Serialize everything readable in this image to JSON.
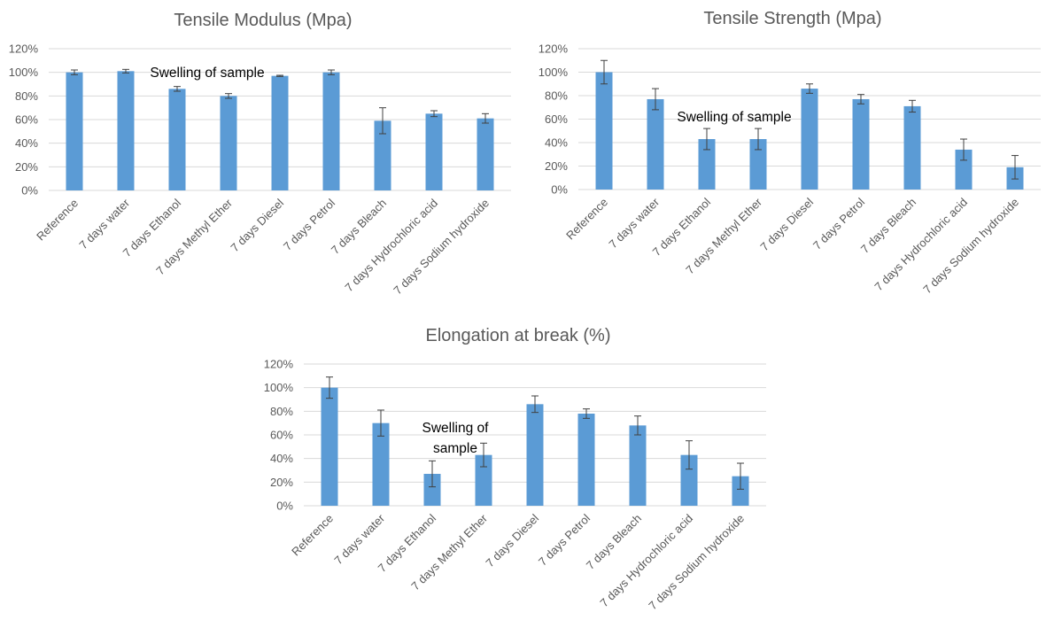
{
  "chart_data": [
    {
      "type": "bar",
      "title": "Tensile Modulus (Mpa)",
      "categories": [
        "Reference",
        "7 days water",
        "7 days Ethanol",
        "7 days Methyl Ether",
        "7 days Diesel",
        "7 days Petrol",
        "7 days Bleach",
        "7 days Hydrochloric acid",
        "7 days Sodium hydroxide"
      ],
      "values": [
        100,
        101,
        86,
        80,
        97,
        100,
        59,
        65,
        61
      ],
      "errors": [
        2,
        1.5,
        2,
        2,
        0.5,
        2,
        11,
        2.5,
        4
      ],
      "ylim": [
        0,
        120
      ],
      "yticks": [
        "0%",
        "20%",
        "40%",
        "60%",
        "80%",
        "100%",
        "120%"
      ],
      "xlabel": "",
      "ylabel": "",
      "annotations": [
        {
          "lines": [
            "Swelling of sample"
          ]
        }
      ]
    },
    {
      "type": "bar",
      "title": "Tensile Strength (Mpa)",
      "categories": [
        "Reference",
        "7 days water",
        "7 days Ethanol",
        "7 days Methyl Ether",
        "7 days Diesel",
        "7 days Petrol",
        "7 days Bleach",
        "7 days Hydrochloric acid",
        "7 days Sodium hydroxide"
      ],
      "values": [
        100,
        77,
        43,
        43,
        86,
        77,
        71,
        34,
        19
      ],
      "errors": [
        10,
        9,
        9,
        9,
        4,
        4,
        5,
        9,
        10
      ],
      "ylim": [
        0,
        120
      ],
      "yticks": [
        "0%",
        "20%",
        "40%",
        "60%",
        "80%",
        "100%",
        "120%"
      ],
      "xlabel": "",
      "ylabel": "",
      "annotations": [
        {
          "lines": [
            "Swelling of sample"
          ]
        }
      ]
    },
    {
      "type": "bar",
      "title": "Elongation at break (%)",
      "categories": [
        "Reference",
        "7 days water",
        "7 days Ethanol",
        "7 days Methyl Ether",
        "7 days Diesel",
        "7 days Petrol",
        "7 days Bleach",
        "7 days Hydrochloric acid",
        "7 days Sodium hydroxide"
      ],
      "values": [
        100,
        70,
        27,
        43,
        86,
        78,
        68,
        43,
        25
      ],
      "errors": [
        9,
        11,
        11,
        10,
        7,
        4,
        8,
        12,
        11
      ],
      "ylim": [
        0,
        120
      ],
      "yticks": [
        "0%",
        "20%",
        "40%",
        "60%",
        "80%",
        "100%",
        "120%"
      ],
      "xlabel": "",
      "ylabel": "",
      "annotations": [
        {
          "lines": [
            "Swelling of",
            "sample"
          ]
        }
      ]
    }
  ],
  "colors": {
    "bar": "#5b9bd5",
    "grid": "#d9d9d9",
    "axis_text": "#595959",
    "error": "#404040"
  }
}
